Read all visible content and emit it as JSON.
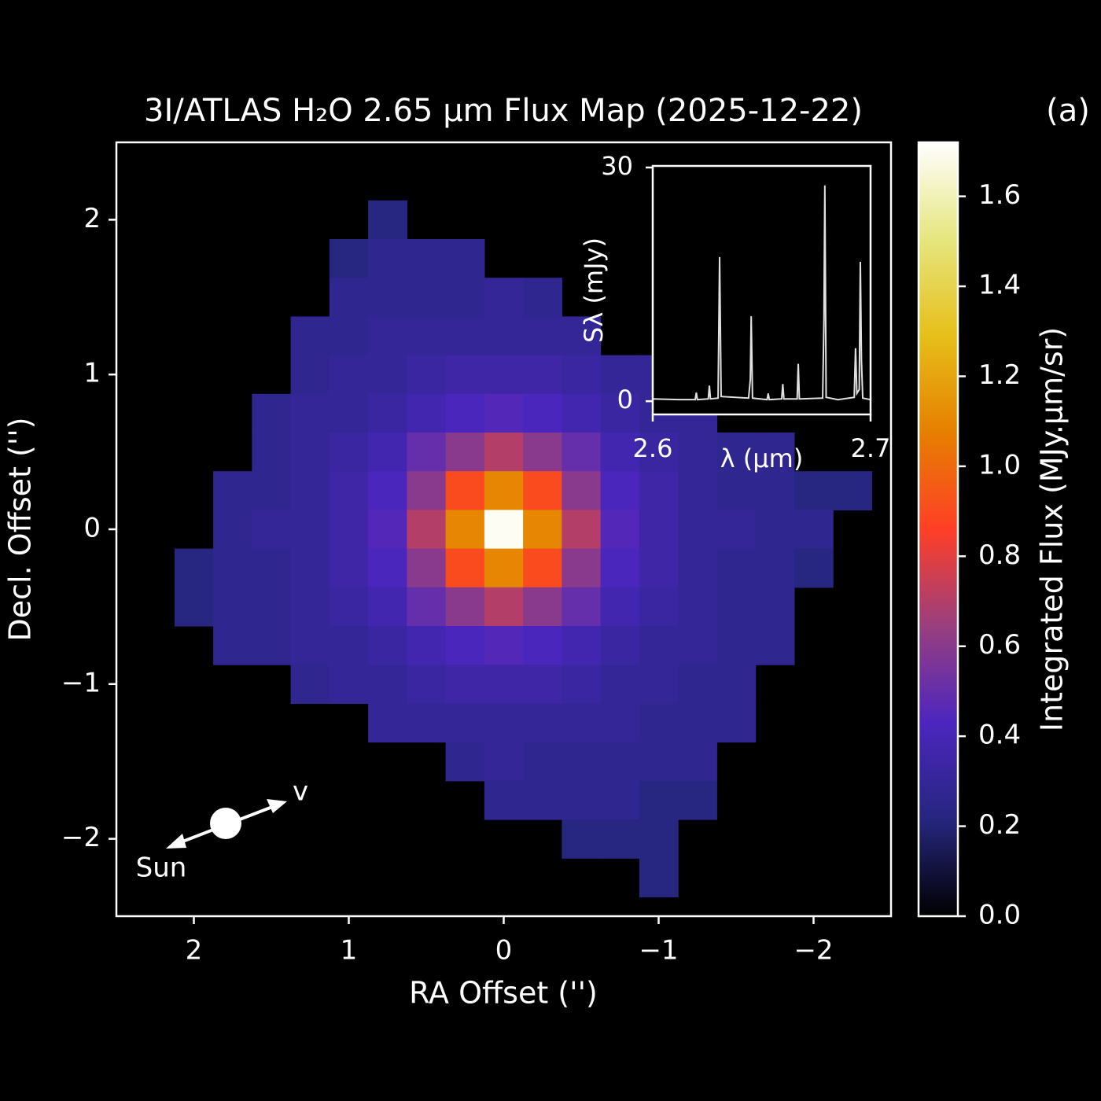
{
  "chart_data": [
    {
      "type": "heatmap",
      "title": "3I/ATLAS H₂O 2.65 μm Flux Map (2025-12-22)",
      "panel_label": "(a)",
      "x_label": "RA Offset ('')",
      "y_label": "Decl. Offset ('')",
      "xlim": [
        2.5,
        -2.5
      ],
      "ylim": [
        -2.5,
        2.5
      ],
      "xticks": [
        2,
        1,
        0,
        {
          "value": -1,
          "label": "−1"
        },
        {
          "value": -2,
          "label": "−2"
        }
      ],
      "yticks": [
        {
          "value": -2,
          "label": "−2"
        },
        {
          "value": -1,
          "label": "−1"
        },
        0,
        1,
        2
      ],
      "x": [
        2.25,
        2.0,
        1.75,
        1.5,
        1.25,
        1.0,
        0.75,
        0.5,
        0.25,
        0,
        -0.25,
        -0.5,
        -0.75,
        -1.0,
        -1.25,
        -1.5,
        -1.75,
        -2.0,
        -2.25
      ],
      "y": [
        2.25,
        2.0,
        1.75,
        1.5,
        1.25,
        1.0,
        0.75,
        0.5,
        0.25,
        0,
        -0.25,
        -0.5,
        -0.75,
        -1.0,
        -1.25,
        -1.5,
        -1.75,
        -2.0,
        -2.25
      ],
      "z": [
        [
          null,
          null,
          null,
          null,
          null,
          null,
          null,
          null,
          null,
          null,
          null,
          null,
          null,
          null,
          null,
          null,
          null,
          null,
          null
        ],
        [
          null,
          null,
          null,
          null,
          null,
          null,
          0.22,
          null,
          null,
          null,
          null,
          null,
          null,
          null,
          null,
          null,
          null,
          null,
          null
        ],
        [
          null,
          null,
          null,
          null,
          null,
          0.22,
          0.27,
          0.27,
          0.27,
          null,
          null,
          null,
          null,
          null,
          null,
          null,
          null,
          null,
          null
        ],
        [
          null,
          null,
          null,
          null,
          null,
          0.27,
          0.27,
          0.27,
          0.27,
          0.3,
          0.27,
          null,
          null,
          null,
          null,
          null,
          null,
          null,
          null
        ],
        [
          null,
          null,
          null,
          null,
          0.27,
          0.27,
          0.3,
          0.3,
          0.3,
          0.3,
          0.3,
          0.3,
          null,
          null,
          null,
          null,
          null,
          null,
          null
        ],
        [
          null,
          null,
          null,
          null,
          0.27,
          0.3,
          0.3,
          0.33,
          0.35,
          0.35,
          0.35,
          0.33,
          0.3,
          0.3,
          null,
          null,
          null,
          null,
          null
        ],
        [
          null,
          null,
          null,
          0.27,
          0.3,
          0.3,
          0.33,
          0.38,
          0.42,
          0.45,
          0.42,
          0.38,
          0.33,
          0.3,
          0.3,
          null,
          null,
          null,
          null
        ],
        [
          null,
          null,
          null,
          0.27,
          0.3,
          0.33,
          0.38,
          0.5,
          0.6,
          0.7,
          0.6,
          0.5,
          0.38,
          0.33,
          0.3,
          0.27,
          0.27,
          null,
          null
        ],
        [
          null,
          null,
          0.27,
          0.27,
          0.3,
          0.35,
          0.42,
          0.6,
          0.9,
          1.1,
          0.9,
          0.6,
          0.42,
          0.35,
          0.3,
          0.27,
          0.27,
          0.22,
          0.22
        ],
        [
          null,
          null,
          0.27,
          0.3,
          0.3,
          0.35,
          0.45,
          0.7,
          1.1,
          1.7,
          1.1,
          0.7,
          0.45,
          0.35,
          0.3,
          0.3,
          0.27,
          0.27,
          null
        ],
        [
          null,
          0.22,
          0.27,
          0.27,
          0.3,
          0.35,
          0.42,
          0.6,
          0.9,
          1.1,
          0.9,
          0.6,
          0.42,
          0.35,
          0.3,
          0.27,
          0.27,
          0.22,
          null
        ],
        [
          null,
          0.22,
          0.27,
          0.27,
          0.3,
          0.33,
          0.38,
          0.5,
          0.6,
          0.7,
          0.6,
          0.5,
          0.38,
          0.33,
          0.3,
          0.27,
          0.27,
          null,
          null
        ],
        [
          null,
          null,
          0.27,
          0.27,
          0.3,
          0.3,
          0.33,
          0.38,
          0.42,
          0.45,
          0.42,
          0.38,
          0.33,
          0.3,
          0.3,
          0.27,
          0.27,
          null,
          null
        ],
        [
          null,
          null,
          null,
          null,
          0.27,
          0.3,
          0.3,
          0.33,
          0.35,
          0.35,
          0.35,
          0.33,
          0.3,
          0.3,
          0.27,
          0.27,
          null,
          null,
          null
        ],
        [
          null,
          null,
          null,
          null,
          null,
          null,
          0.3,
          0.3,
          0.3,
          0.3,
          0.3,
          0.3,
          0.3,
          0.27,
          0.27,
          0.27,
          null,
          null,
          null
        ],
        [
          null,
          null,
          null,
          null,
          null,
          null,
          null,
          null,
          0.27,
          0.3,
          0.27,
          0.27,
          0.27,
          0.27,
          0.27,
          null,
          null,
          null,
          null
        ],
        [
          null,
          null,
          null,
          null,
          null,
          null,
          null,
          null,
          null,
          0.27,
          0.27,
          0.27,
          0.27,
          0.22,
          0.22,
          null,
          null,
          null,
          null
        ],
        [
          null,
          null,
          null,
          null,
          null,
          null,
          null,
          null,
          null,
          null,
          null,
          0.22,
          0.22,
          0.22,
          null,
          null,
          null,
          null,
          null
        ],
        [
          null,
          null,
          null,
          null,
          null,
          null,
          null,
          null,
          null,
          null,
          null,
          null,
          null,
          0.22,
          null,
          null,
          null,
          null,
          null
        ]
      ],
      "colormap": [
        "#000000",
        "#26267f",
        "#4c26bf",
        "#993f7f",
        "#ff3f26",
        "#e67f00",
        "#e6bf1a",
        "#e6e67f",
        "#ffffff"
      ],
      "colorbar": {
        "label": "Integrated Flux (MJy.μm/sr)",
        "lim": [
          0,
          1.72
        ],
        "ticks": [
          {
            "value": 0,
            "label": "0.0"
          },
          0.2,
          0.4,
          0.6,
          0.8,
          {
            "value": 1.0,
            "label": "1.0"
          },
          1.2,
          1.4,
          1.6
        ]
      },
      "annotations": [
        "Sun",
        "v"
      ]
    },
    {
      "type": "line",
      "x_label": "λ (μm)",
      "y_label": "Sλ (mJy)",
      "color": "#e0e0e0",
      "xlim": [
        2.6,
        2.7
      ],
      "ylim": [
        -1.7,
        30.2
      ],
      "xticks": [
        2.6,
        2.7
      ],
      "yticks": [
        0,
        30
      ],
      "x": [
        2.6,
        2.612,
        2.6195,
        2.62,
        2.6205,
        2.6255,
        2.626,
        2.6265,
        2.63,
        2.6307,
        2.6314,
        2.644,
        2.6448,
        2.6452,
        2.6458,
        2.6525,
        2.653,
        2.6535,
        2.6592,
        2.6597,
        2.6602,
        2.6663,
        2.6668,
        2.6673,
        2.678,
        2.6786,
        2.679,
        2.6796,
        2.685,
        2.6925,
        2.6931,
        2.6937,
        2.6948,
        2.6953,
        2.6958,
        2.6964,
        2.7
      ],
      "values": [
        0.3,
        0.2,
        0.2,
        1.1,
        0.2,
        0.3,
        2.0,
        0.3,
        0.4,
        18.5,
        0.6,
        0.4,
        2.8,
        10.9,
        0.4,
        0.2,
        1.0,
        0.2,
        0.3,
        2.2,
        0.3,
        0.3,
        4.8,
        0.3,
        0.4,
        10.5,
        27.7,
        0.5,
        0.2,
        0.5,
        6.8,
        1.0,
        1.5,
        17.9,
        5.3,
        0.4,
        0.2
      ]
    }
  ]
}
